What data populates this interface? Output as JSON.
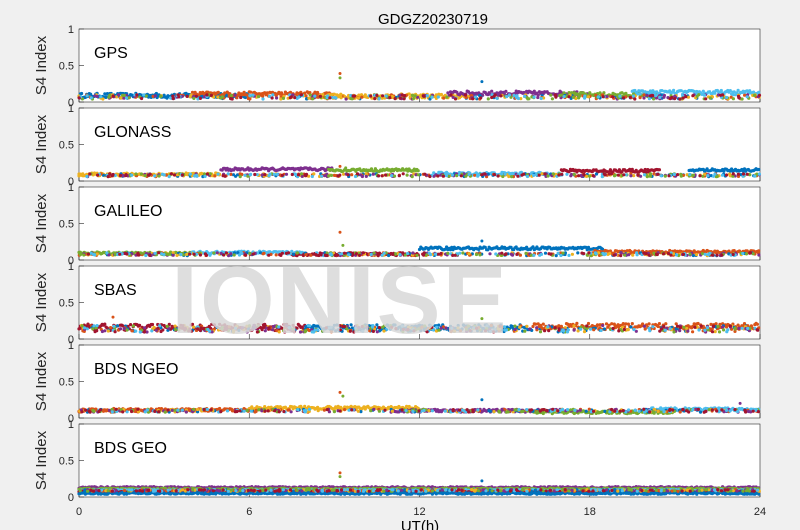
{
  "figure": {
    "title": "GDGZ20230719",
    "xlabel": "UT(h)",
    "watermark": "IONISE"
  },
  "colors": [
    "#0072BD",
    "#D95319",
    "#EDB120",
    "#7E2F8E",
    "#77AC30",
    "#4DBEEE",
    "#A2142F"
  ],
  "chart_data": [
    {
      "type": "scatter",
      "panel_label": "GPS",
      "ylabel": "S4 Index",
      "xlim": [
        0,
        24
      ],
      "ylim": [
        0,
        1
      ],
      "xticks": [
        0,
        6,
        12,
        18,
        24
      ],
      "yticks": [
        0,
        0.5,
        1
      ],
      "baseline": 0.07,
      "noise": 0.03,
      "spikes": [
        {
          "x": 9.2,
          "y": 0.39
        },
        {
          "x": 9.2,
          "y": 0.33
        },
        {
          "x": 14.2,
          "y": 0.28
        }
      ],
      "arcs": [
        {
          "start": 0,
          "end": 6,
          "level": 0.09
        },
        {
          "start": 4,
          "end": 9,
          "level": 0.11
        },
        {
          "start": 8.5,
          "end": 14,
          "level": 0.08
        },
        {
          "start": 13,
          "end": 18,
          "level": 0.12
        },
        {
          "start": 17,
          "end": 20.5,
          "level": 0.1
        },
        {
          "start": 19.5,
          "end": 24,
          "level": 0.13
        }
      ]
    },
    {
      "type": "scatter",
      "panel_label": "GLONASS",
      "ylabel": "S4 Index",
      "xlim": [
        0,
        24
      ],
      "ylim": [
        0,
        1
      ],
      "xticks": [
        0,
        6,
        12,
        18,
        24
      ],
      "yticks": [
        0,
        0.5,
        1
      ],
      "baseline": 0.08,
      "noise": 0.02,
      "spikes": [
        {
          "x": 9.2,
          "y": 0.2
        },
        {
          "x": 9.4,
          "y": 0.18
        }
      ],
      "arcs": [
        {
          "start": 0,
          "end": 5,
          "level": 0.09
        },
        {
          "start": 5,
          "end": 9,
          "level": 0.16
        },
        {
          "start": 8.8,
          "end": 12,
          "level": 0.15
        },
        {
          "start": 12.5,
          "end": 17,
          "level": 0.1
        },
        {
          "start": 17,
          "end": 20.5,
          "level": 0.14
        },
        {
          "start": 21.5,
          "end": 24,
          "level": 0.15
        }
      ]
    },
    {
      "type": "scatter",
      "panel_label": "GALILEO",
      "ylabel": "S4 Index",
      "xlim": [
        0,
        24
      ],
      "ylim": [
        0,
        1
      ],
      "xticks": [
        0,
        6,
        12,
        18,
        24
      ],
      "yticks": [
        0,
        0.5,
        1
      ],
      "baseline": 0.08,
      "noise": 0.02,
      "spikes": [
        {
          "x": 9.2,
          "y": 0.38
        },
        {
          "x": 9.3,
          "y": 0.2
        },
        {
          "x": 14.2,
          "y": 0.26
        }
      ],
      "arcs": [
        {
          "start": 0,
          "end": 4,
          "level": 0.09
        },
        {
          "start": 4,
          "end": 8,
          "level": 0.1
        },
        {
          "start": 7.5,
          "end": 12,
          "level": 0.08
        },
        {
          "start": 12,
          "end": 18.5,
          "level": 0.16
        },
        {
          "start": 18,
          "end": 24,
          "level": 0.11
        }
      ]
    },
    {
      "type": "scatter",
      "panel_label": "SBAS",
      "ylabel": "S4 Index",
      "xlim": [
        0,
        24
      ],
      "ylim": [
        0,
        1
      ],
      "xticks": [
        0,
        6,
        12,
        18,
        24
      ],
      "yticks": [
        0,
        0.5,
        1
      ],
      "baseline": 0.14,
      "noise": 0.045,
      "spikes": [
        {
          "x": 1.2,
          "y": 0.3
        },
        {
          "x": 14.2,
          "y": 0.28
        }
      ],
      "arcs": [
        {
          "start": 0,
          "end": 8,
          "level": 0.16
        },
        {
          "start": 8,
          "end": 16,
          "level": 0.15
        },
        {
          "start": 16,
          "end": 24,
          "level": 0.17
        }
      ]
    },
    {
      "type": "scatter",
      "panel_label": "BDS NGEO",
      "ylabel": "S4 Index",
      "xlim": [
        0,
        24
      ],
      "ylim": [
        0,
        1
      ],
      "xticks": [
        0,
        6,
        12,
        18,
        24
      ],
      "yticks": [
        0,
        0.5,
        1
      ],
      "baseline": 0.1,
      "noise": 0.02,
      "spikes": [
        {
          "x": 9.2,
          "y": 0.35
        },
        {
          "x": 9.3,
          "y": 0.3
        },
        {
          "x": 14.2,
          "y": 0.25
        },
        {
          "x": 23.3,
          "y": 0.2
        }
      ],
      "arcs": [
        {
          "start": 0,
          "end": 6,
          "level": 0.11
        },
        {
          "start": 6,
          "end": 12,
          "level": 0.14
        },
        {
          "start": 11,
          "end": 17,
          "level": 0.1
        },
        {
          "start": 16,
          "end": 21,
          "level": 0.08
        },
        {
          "start": 20,
          "end": 24,
          "level": 0.12
        }
      ]
    },
    {
      "type": "scatter",
      "panel_label": "BDS GEO",
      "ylabel": "S4 Index",
      "xlim": [
        0,
        24
      ],
      "ylim": [
        0,
        1
      ],
      "xticks": [
        0,
        6,
        12,
        18,
        24
      ],
      "yticks": [
        0,
        0.5,
        1
      ],
      "baseline": 0.09,
      "noise": 0.012,
      "spikes": [
        {
          "x": 9.2,
          "y": 0.33
        },
        {
          "x": 9.2,
          "y": 0.28
        },
        {
          "x": 14.2,
          "y": 0.22
        }
      ],
      "arcs": [
        {
          "start": 0,
          "end": 24,
          "level": 0.13
        },
        {
          "start": 0,
          "end": 24,
          "level": 0.11
        },
        {
          "start": 0,
          "end": 24,
          "level": 0.09
        },
        {
          "start": 0,
          "end": 24,
          "level": 0.07
        },
        {
          "start": 0,
          "end": 24,
          "level": 0.05
        }
      ]
    }
  ]
}
